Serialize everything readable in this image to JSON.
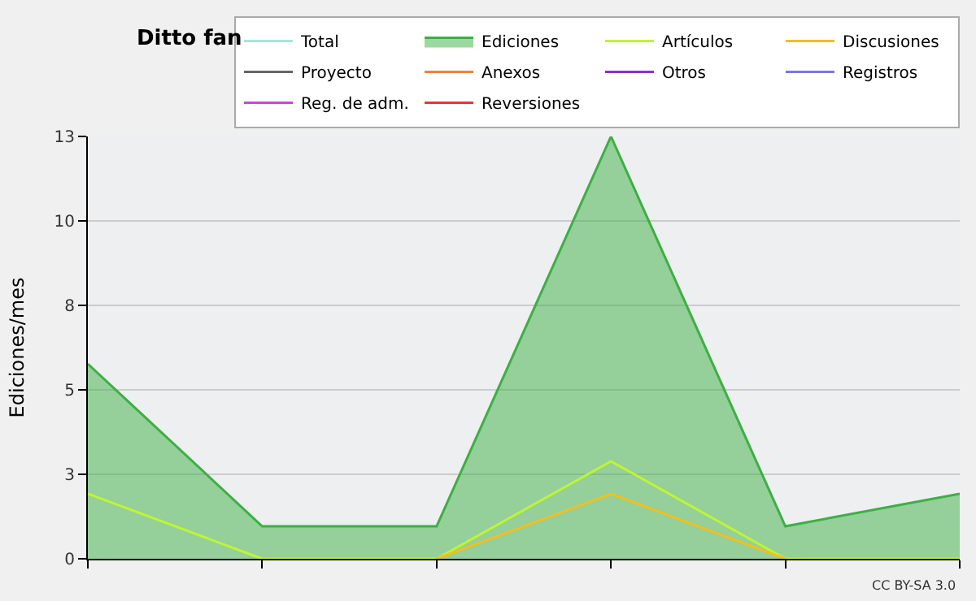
{
  "chart_data": {
    "type": "line",
    "title": "Ditto fan",
    "ylabel": "Ediciones/mes",
    "categories": [
      null,
      null,
      null,
      null,
      null,
      null
    ],
    "series": [
      {
        "name": "Total",
        "color": "#a8e4e0",
        "values": [
          null,
          null,
          null,
          null,
          null,
          null
        ]
      },
      {
        "name": "Ediciones",
        "color": "#3cb043",
        "type": "area",
        "values": [
          6,
          1,
          1,
          13,
          1,
          2
        ]
      },
      {
        "name": "Artículos",
        "color": "#bff533",
        "values": [
          2,
          0,
          0,
          3,
          0,
          0
        ]
      },
      {
        "name": "Discusiones",
        "color": "#f0c020",
        "values": [
          null,
          null,
          0,
          2,
          0,
          null
        ]
      },
      {
        "name": "Proyecto",
        "color": "#666666",
        "values": [
          null,
          null,
          null,
          null,
          null,
          null
        ]
      },
      {
        "name": "Anexos",
        "color": "#f08040",
        "values": [
          null,
          null,
          null,
          null,
          null,
          null
        ]
      },
      {
        "name": "Otros",
        "color": "#8833cc",
        "values": [
          null,
          null,
          null,
          null,
          null,
          null
        ]
      },
      {
        "name": "Registros",
        "color": "#7777ee",
        "values": [
          null,
          null,
          null,
          null,
          null,
          null
        ]
      },
      {
        "name": "Reg. de adm.",
        "color": "#cc44dd",
        "values": [
          null,
          null,
          null,
          null,
          null,
          null
        ]
      },
      {
        "name": "Reversiones",
        "color": "#ee3333",
        "values": [
          null,
          null,
          null,
          null,
          null,
          null
        ]
      }
    ],
    "ylim": [
      0,
      13
    ],
    "yticks": [
      0,
      {
        "value": 2.6,
        "label": "3"
      },
      {
        "value": 5.2,
        "label": "5"
      },
      {
        "value": 7.8,
        "label": "8"
      },
      {
        "value": 10.4,
        "label": "10"
      },
      13
    ],
    "grid": "y",
    "legend": "top right",
    "marker": "none",
    "line_style": "solid",
    "annotations": [
      "CC BY-SA 3.0"
    ]
  }
}
